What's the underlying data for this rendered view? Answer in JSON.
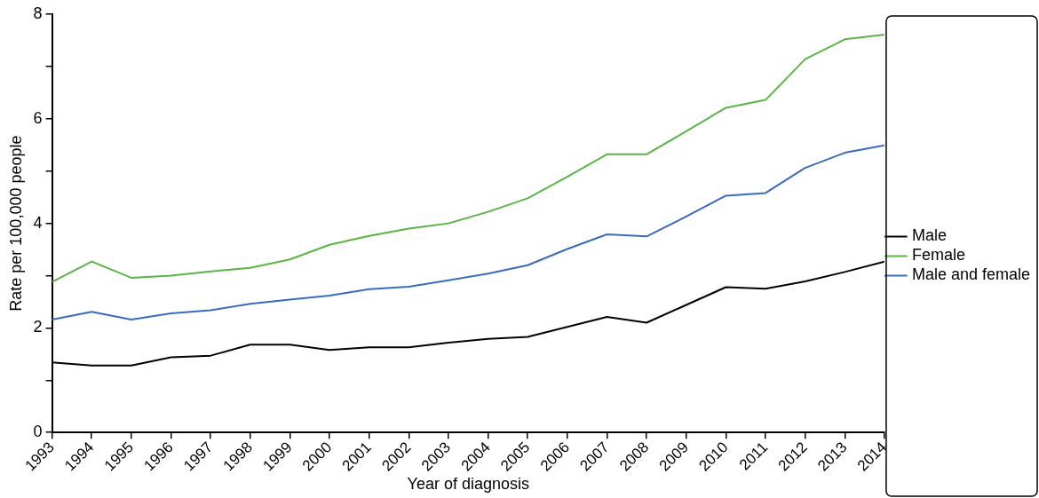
{
  "chart_data": {
    "type": "line",
    "xlabel": "Year of diagnosis",
    "ylabel": "Rate per 100,000 people",
    "x": [
      1993,
      1994,
      1995,
      1996,
      1997,
      1998,
      1999,
      2000,
      2001,
      2002,
      2003,
      2004,
      2005,
      2006,
      2007,
      2008,
      2009,
      2010,
      2011,
      2012,
      2013,
      2014
    ],
    "series": [
      {
        "name": "Male",
        "color": "#000000",
        "values": [
          1.34,
          1.28,
          1.28,
          1.44,
          1.47,
          1.68,
          1.68,
          1.58,
          1.63,
          1.63,
          1.72,
          1.79,
          1.83,
          2.02,
          2.21,
          2.1,
          2.44,
          2.78,
          2.75,
          2.89,
          3.07,
          3.27
        ]
      },
      {
        "name": "Female",
        "color": "#5ab446",
        "values": [
          2.88,
          3.27,
          2.96,
          3.0,
          3.08,
          3.15,
          3.31,
          3.59,
          3.76,
          3.9,
          4.0,
          4.22,
          4.48,
          4.89,
          5.32,
          5.32,
          5.76,
          6.21,
          6.36,
          7.14,
          7.52,
          7.61
        ]
      },
      {
        "name": "Male and female",
        "color": "#3a6bbd",
        "values": [
          2.16,
          2.31,
          2.16,
          2.28,
          2.34,
          2.46,
          2.54,
          2.62,
          2.74,
          2.79,
          2.91,
          3.04,
          3.2,
          3.51,
          3.79,
          3.75,
          4.13,
          4.53,
          4.58,
          5.06,
          5.35,
          5.49
        ]
      }
    ],
    "xlim": [
      1993,
      2014
    ],
    "xticks": [
      1993,
      1994,
      1995,
      1996,
      1997,
      1998,
      1999,
      2000,
      2001,
      2002,
      2003,
      2004,
      2005,
      2006,
      2007,
      2008,
      2009,
      2010,
      2011,
      2012,
      2013,
      2014
    ],
    "ylim": [
      0,
      8
    ],
    "yticks": [
      0,
      {
        "value": 1,
        "label": null
      },
      2,
      {
        "value": 3,
        "label": null
      },
      4,
      {
        "value": 5,
        "label": null
      },
      6,
      {
        "value": 7,
        "label": null
      },
      8
    ],
    "grid": false,
    "legend": "right",
    "marker": "none",
    "line_style": "solid"
  }
}
